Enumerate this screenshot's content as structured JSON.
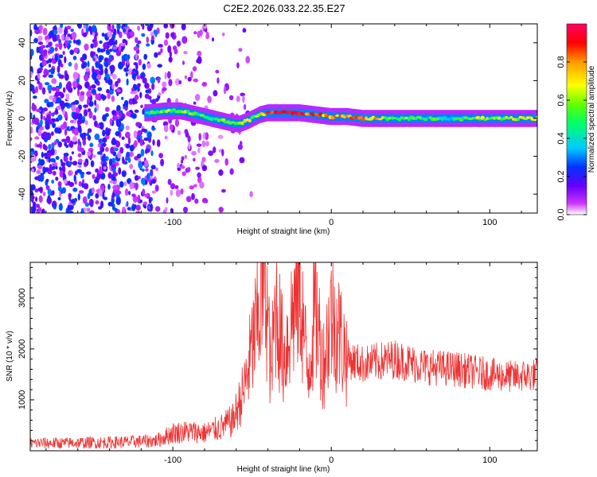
{
  "chart_data": [
    {
      "type": "heatmap",
      "title": "C2E2.2026.033.22.35.E27",
      "xlabel": "Height of straight line (km)",
      "ylabel": "Frequency (Hz)",
      "xlim": [
        -190,
        130
      ],
      "ylim": [
        -50,
        50
      ],
      "xticks": [
        -100,
        0,
        100
      ],
      "yticks": [
        -40,
        -20,
        0,
        20,
        40
      ],
      "colorbar": {
        "label": "Normalized spectral amplitude",
        "range": [
          0,
          1
        ],
        "ticks": [
          0.0,
          0.2,
          0.4,
          0.6,
          0.8
        ],
        "tick_labels": [
          "0.0",
          "0.2",
          "0.4",
          "0.6",
          "0.8"
        ],
        "colors": [
          "#ffffff",
          "#cc33ff",
          "#6600ff",
          "#0033ff",
          "#00ccff",
          "#00ff66",
          "#66ff00",
          "#ffff00",
          "#ff9900",
          "#ff0000",
          "#ff0066"
        ]
      },
      "ridge": {
        "x": [
          -115,
          -105,
          -95,
          -85,
          -75,
          -65,
          -58,
          -52,
          -45,
          -40,
          -30,
          -20,
          -10,
          0,
          10,
          20,
          40,
          60,
          80,
          100,
          130
        ],
        "frequency": [
          3,
          4,
          4,
          2,
          0,
          -2,
          -3,
          -1,
          2,
          3,
          3,
          3,
          2,
          1,
          1,
          0,
          0,
          0,
          0,
          0,
          0
        ],
        "amplitude": [
          0.45,
          0.55,
          0.6,
          0.55,
          0.5,
          0.6,
          0.65,
          0.6,
          0.7,
          0.9,
          0.95,
          0.9,
          0.85,
          0.7,
          0.8,
          0.8,
          0.55,
          0.5,
          0.5,
          0.65,
          0.6
        ]
      },
      "noise_region": {
        "x": [
          -190,
          -60
        ],
        "frequency": [
          -50,
          50
        ],
        "amplitude_range": [
          0.05,
          0.35
        ]
      }
    },
    {
      "type": "line",
      "xlabel": "Height of straight line (km)",
      "ylabel": "SNR (10 * v/v)",
      "xlim": [
        -190,
        130
      ],
      "ylim": [
        0,
        3700
      ],
      "xticks": [
        -100,
        0,
        100
      ],
      "yticks": [
        1000,
        2000,
        3000
      ],
      "color": "#ee3333",
      "series": [
        {
          "name": "SNR",
          "x": [
            -190,
            -170,
            -150,
            -130,
            -110,
            -100,
            -90,
            -80,
            -70,
            -62,
            -55,
            -50,
            -45,
            -42,
            -40,
            -38,
            -35,
            -30,
            -25,
            -20,
            -15,
            -10,
            -5,
            0,
            5,
            10,
            20,
            30,
            40,
            60,
            80,
            100,
            115,
            130
          ],
          "y": [
            150,
            150,
            160,
            170,
            200,
            350,
            380,
            350,
            450,
            600,
            1200,
            2000,
            2800,
            3700,
            2500,
            1500,
            2900,
            1800,
            2600,
            3300,
            1500,
            2800,
            1700,
            2700,
            2300,
            1800,
            1700,
            1750,
            1800,
            1650,
            1600,
            1500,
            1450,
            1500
          ]
        }
      ]
    }
  ]
}
